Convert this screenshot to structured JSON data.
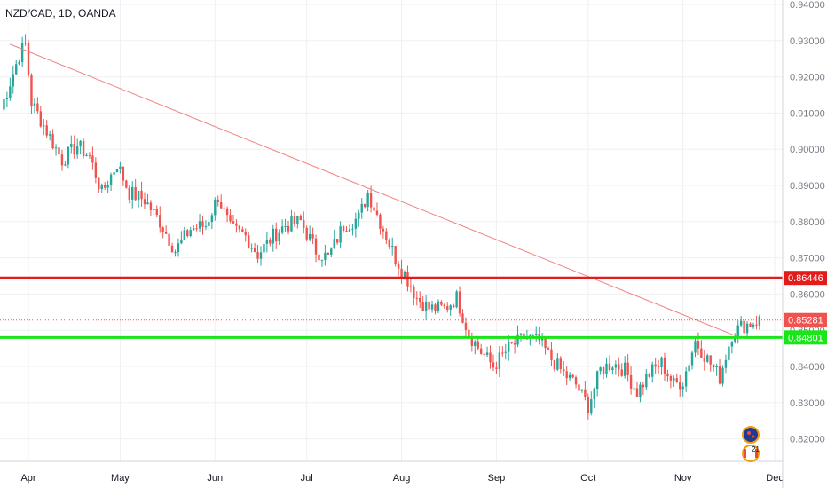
{
  "symbol_label": "NZD/CAD, 1D, OANDA",
  "colors": {
    "up": "#26a69a",
    "down": "#ef5350",
    "resistance": "#e41b1b",
    "support": "#19e619",
    "trendline": "#f08080",
    "current": "#ef5350",
    "grid": "#eef0f3",
    "axis_text": "#787b86"
  },
  "chart_data": {
    "type": "candlestick",
    "title": "NZD/CAD, 1D, OANDA",
    "ylim": [
      0.815,
      0.94
    ],
    "yticks": [
      "0.82000",
      "0.83000",
      "0.84000",
      "0.85000",
      "0.86000",
      "0.87000",
      "0.88000",
      "0.89000",
      "0.90000",
      "0.91000",
      "0.92000",
      "0.93000",
      "0.94000"
    ],
    "xticks": [
      {
        "label": "Apr",
        "day": 9
      },
      {
        "label": "May",
        "day": 39
      },
      {
        "label": "Jun",
        "day": 70
      },
      {
        "label": "Jul",
        "day": 100
      },
      {
        "label": "Aug",
        "day": 131
      },
      {
        "label": "Sep",
        "day": 162
      },
      {
        "label": "Oct",
        "day": 192
      },
      {
        "label": "Nov",
        "day": 223
      },
      {
        "label": "Dec",
        "day": 253
      }
    ],
    "grid": true,
    "levels": [
      {
        "name": "resistance",
        "value": 0.86446,
        "label": "0.86446"
      },
      {
        "name": "support",
        "value": 0.84801,
        "label": "0.84801"
      }
    ],
    "current_price": {
      "value": 0.85281,
      "label": "0.85281"
    },
    "trendline": [
      {
        "day": 3,
        "price": 0.929
      },
      {
        "day": 241,
        "price": 0.8482
      }
    ],
    "anchors": [
      [
        0,
        0.911
      ],
      [
        6,
        0.926
      ],
      [
        8,
        0.929
      ],
      [
        10,
        0.913
      ],
      [
        15,
        0.905
      ],
      [
        20,
        0.897
      ],
      [
        25,
        0.901
      ],
      [
        29,
        0.898
      ],
      [
        33,
        0.888
      ],
      [
        38,
        0.896
      ],
      [
        42,
        0.888
      ],
      [
        47,
        0.886
      ],
      [
        52,
        0.88
      ],
      [
        57,
        0.872
      ],
      [
        62,
        0.878
      ],
      [
        67,
        0.879
      ],
      [
        71,
        0.887
      ],
      [
        75,
        0.878
      ],
      [
        80,
        0.876
      ],
      [
        84,
        0.871
      ],
      [
        89,
        0.876
      ],
      [
        93,
        0.879
      ],
      [
        98,
        0.88
      ],
      [
        103,
        0.872
      ],
      [
        107,
        0.87
      ],
      [
        112,
        0.879
      ],
      [
        117,
        0.881
      ],
      [
        120,
        0.888
      ],
      [
        124,
        0.88
      ],
      [
        129,
        0.87
      ],
      [
        133,
        0.864
      ],
      [
        136,
        0.859
      ],
      [
        140,
        0.856
      ],
      [
        145,
        0.856
      ],
      [
        149,
        0.859
      ],
      [
        153,
        0.849
      ],
      [
        157,
        0.844
      ],
      [
        161,
        0.84
      ],
      [
        166,
        0.845
      ],
      [
        171,
        0.848
      ],
      [
        176,
        0.847
      ],
      [
        180,
        0.842
      ],
      [
        184,
        0.838
      ],
      [
        188,
        0.835
      ],
      [
        192,
        0.829
      ],
      [
        196,
        0.839
      ],
      [
        200,
        0.841
      ],
      [
        204,
        0.839
      ],
      [
        208,
        0.833
      ],
      [
        212,
        0.838
      ],
      [
        216,
        0.841
      ],
      [
        220,
        0.835
      ],
      [
        223,
        0.836
      ],
      [
        227,
        0.847
      ],
      [
        231,
        0.842
      ],
      [
        235,
        0.837
      ],
      [
        239,
        0.849
      ],
      [
        242,
        0.851
      ],
      [
        245,
        0.852
      ],
      [
        248,
        0.8528
      ]
    ],
    "days": 249
  },
  "icons": [
    "flag-nz-icon",
    "flag-ca-icon"
  ],
  "badge_count": "21"
}
